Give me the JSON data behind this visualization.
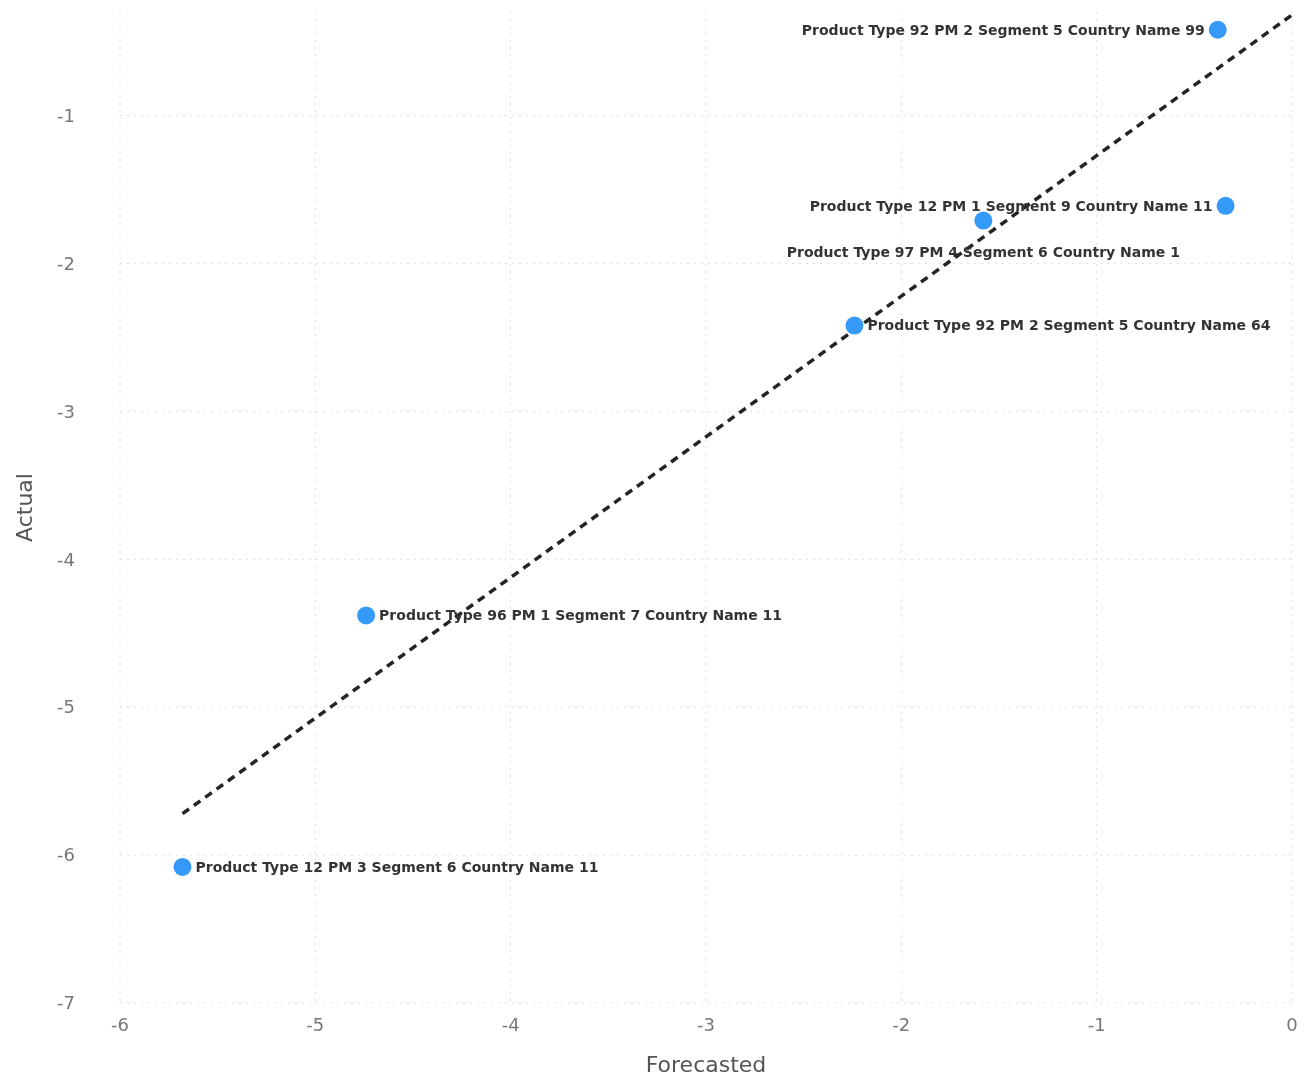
{
  "chart_data": {
    "type": "scatter",
    "xlabel": "Forecasted",
    "ylabel": "Actual",
    "xlim": [
      -6,
      0
    ],
    "xticks": [
      -6,
      -5,
      -4,
      -3,
      -2,
      -1,
      0
    ],
    "ylim": [
      -7,
      -0.3
    ],
    "yticks": [
      -7,
      -6,
      -5,
      -4,
      -3,
      -2,
      -1
    ],
    "grid": true,
    "series": [
      {
        "marker": "circle",
        "color": "#3599f7",
        "x": [
          -0.38,
          -0.34,
          -1.58,
          -2.24,
          -4.74,
          -5.68
        ],
        "values": [
          -0.42,
          -1.61,
          -1.71,
          -2.42,
          -4.38,
          -6.08
        ],
        "value_labels": [
          "Product Type 92 PM 2 Segment 5 Country Name 99",
          "Product Type 12 PM 1 Segment 9 Country Name 11",
          "Product Type 97 PM 4 Segment 6 Country Name 1",
          "Product Type 92 PM 2 Segment 5 Country Name 64",
          "Product Type 96 PM 1 Segment 7 Country Name 11",
          "Product Type 12 PM 3 Segment 6 Country Name 11"
        ]
      },
      {
        "type": "line",
        "color": "#252423",
        "line_style": "dashed",
        "x": [
          -5.68,
          0
        ],
        "values": [
          -5.72,
          -0.32
        ]
      }
    ]
  }
}
